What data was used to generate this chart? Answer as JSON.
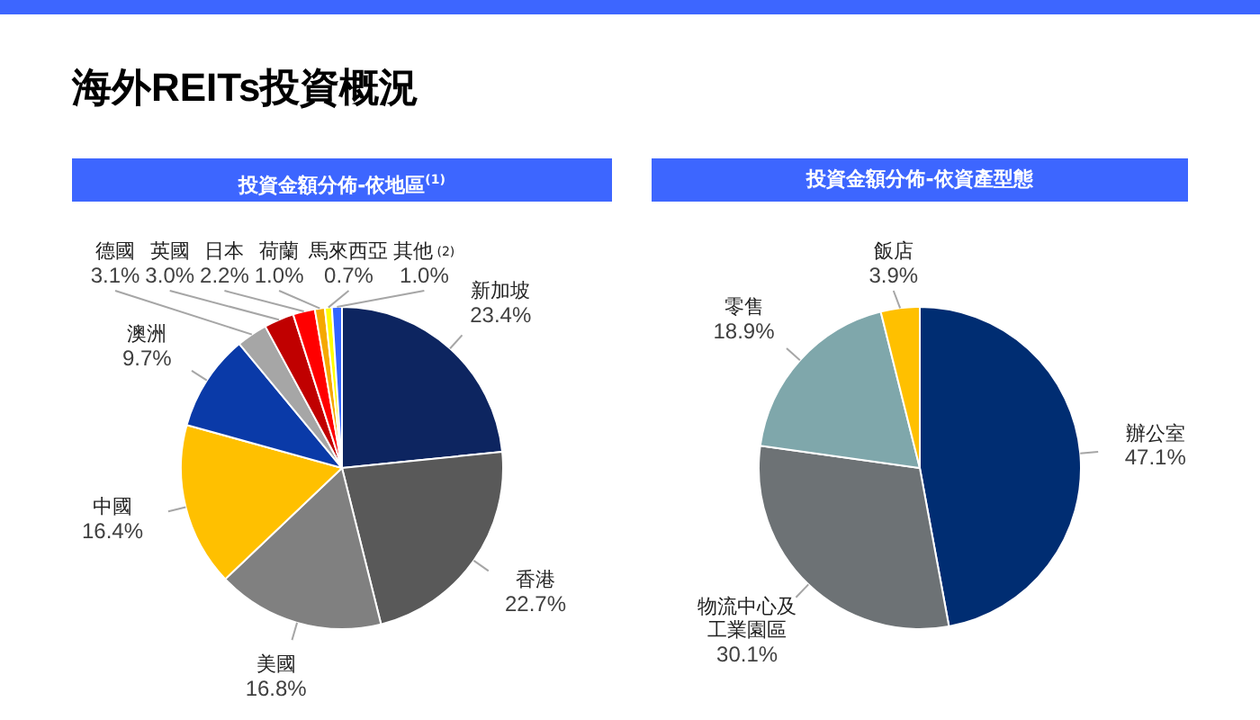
{
  "chart_data": [
    {
      "type": "pie",
      "title": "投資金額分佈-依地區$^{(1)}$",
      "annotations": [
        "海外REITs投資概況"
      ],
      "legend": false,
      "categories": [
        "新加坡",
        "香港",
        "美國",
        "中國",
        "澳洲",
        "德國",
        "英國",
        "日本",
        "荷蘭",
        "馬來西亞",
        "其他$_{(2)}$"
      ],
      "values": [
        23.4,
        22.7,
        16.8,
        16.4,
        9.7,
        3.1,
        3.0,
        2.2,
        1.0,
        0.7,
        1.0
      ],
      "value_labels": [
        "23.4%",
        "22.7%",
        "16.8%",
        "16.4%",
        "9.7%",
        "3.1%",
        "3.0%",
        "2.2%",
        "1.0%",
        "0.7%",
        "1.0%"
      ],
      "colors": [
        "#0d2560",
        "#595959",
        "#808080",
        "#ffc000",
        "#0a3aa8",
        "#a6a6a6",
        "#c00000",
        "#ff0000",
        "#f5a800",
        "#ffff00",
        "#3366ff"
      ]
    },
    {
      "type": "pie",
      "title": "投資金額分佈-依資產型態",
      "legend": false,
      "categories": [
        "辦公室",
        "物流中心及工業園區",
        "零售",
        "飯店"
      ],
      "values": [
        47.1,
        30.1,
        18.9,
        3.9
      ],
      "value_labels": [
        "47.1%",
        "30.1%",
        "18.9%",
        "3.9%"
      ],
      "colors": [
        "#002d72",
        "#6d7275",
        "#7fa7ab",
        "#ffc000"
      ]
    }
  ]
}
